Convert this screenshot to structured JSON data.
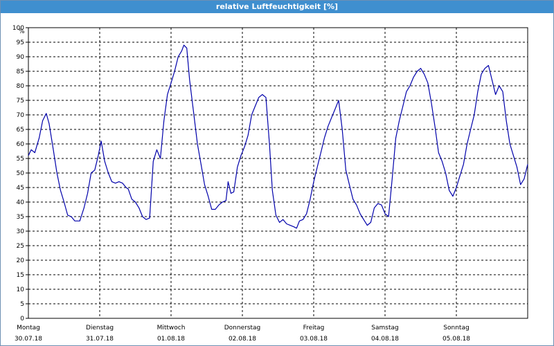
{
  "window": {
    "title": "relative Luftfeuchtigkeit [%]"
  },
  "colors": {
    "title_bg": "#3f8fcf",
    "title_fg": "#ffffff",
    "series": "#0000aa",
    "grid": "#000000"
  },
  "chart_data": {
    "type": "line",
    "title": "relative Luftfeuchtigkeit [%]",
    "ylabel": "%",
    "xlabel": "",
    "ylim": [
      0,
      100
    ],
    "y_ticks": [
      0,
      5,
      10,
      15,
      20,
      25,
      30,
      35,
      40,
      45,
      50,
      55,
      60,
      65,
      70,
      75,
      80,
      85,
      90,
      95,
      100
    ],
    "grid": true,
    "xlim": [
      0,
      7.0
    ],
    "x_ticks": [
      {
        "pos": 0,
        "day": "Montag",
        "date": "30.07.18"
      },
      {
        "pos": 1,
        "day": "Dienstag",
        "date": "31.07.18"
      },
      {
        "pos": 2,
        "day": "Mittwoch",
        "date": "01.08.18"
      },
      {
        "pos": 3,
        "day": "Donnerstag",
        "date": "02.08.18"
      },
      {
        "pos": 4,
        "day": "Freitag",
        "date": "03.08.18"
      },
      {
        "pos": 5,
        "day": "Samstag",
        "date": "04.08.18"
      },
      {
        "pos": 6,
        "day": "Sonntag",
        "date": "05.08.18"
      }
    ],
    "series": [
      {
        "values": [
          [
            0.0,
            56
          ],
          [
            0.04,
            58
          ],
          [
            0.09,
            57
          ],
          [
            0.15,
            62
          ],
          [
            0.2,
            68
          ],
          [
            0.25,
            70.5
          ],
          [
            0.29,
            67
          ],
          [
            0.35,
            58
          ],
          [
            0.4,
            50
          ],
          [
            0.45,
            44
          ],
          [
            0.5,
            40
          ],
          [
            0.55,
            35.5
          ],
          [
            0.6,
            35
          ],
          [
            0.65,
            33.5
          ],
          [
            0.72,
            33.5
          ],
          [
            0.78,
            38
          ],
          [
            0.83,
            43
          ],
          [
            0.88,
            50
          ],
          [
            0.93,
            51
          ],
          [
            0.98,
            56
          ],
          [
            1.02,
            61
          ],
          [
            1.07,
            54
          ],
          [
            1.12,
            50
          ],
          [
            1.17,
            47
          ],
          [
            1.22,
            46.5
          ],
          [
            1.27,
            47
          ],
          [
            1.32,
            46.5
          ],
          [
            1.37,
            45
          ],
          [
            1.4,
            44.5
          ],
          [
            1.45,
            41
          ],
          [
            1.5,
            40
          ],
          [
            1.55,
            38
          ],
          [
            1.6,
            35
          ],
          [
            1.65,
            34
          ],
          [
            1.7,
            34.5
          ],
          [
            1.75,
            54
          ],
          [
            1.8,
            58
          ],
          [
            1.85,
            55
          ],
          [
            1.9,
            68
          ],
          [
            1.95,
            77
          ],
          [
            2.0,
            81
          ],
          [
            2.05,
            85
          ],
          [
            2.1,
            90
          ],
          [
            2.15,
            92
          ],
          [
            2.18,
            94
          ],
          [
            2.22,
            93
          ],
          [
            2.26,
            82
          ],
          [
            2.32,
            70
          ],
          [
            2.37,
            60
          ],
          [
            2.42,
            53
          ],
          [
            2.47,
            46
          ],
          [
            2.52,
            42
          ],
          [
            2.57,
            37.5
          ],
          [
            2.62,
            37.5
          ],
          [
            2.67,
            39
          ],
          [
            2.72,
            40
          ],
          [
            2.77,
            40.5
          ],
          [
            2.8,
            47
          ],
          [
            2.84,
            43
          ],
          [
            2.88,
            43.5
          ],
          [
            2.93,
            52
          ],
          [
            2.98,
            56
          ],
          [
            3.03,
            59
          ],
          [
            3.08,
            63
          ],
          [
            3.13,
            70
          ],
          [
            3.18,
            73
          ],
          [
            3.23,
            76
          ],
          [
            3.28,
            77
          ],
          [
            3.33,
            76
          ],
          [
            3.38,
            60
          ],
          [
            3.42,
            44
          ],
          [
            3.47,
            35.5
          ],
          [
            3.52,
            33
          ],
          [
            3.57,
            34
          ],
          [
            3.62,
            32.5
          ],
          [
            3.67,
            32
          ],
          [
            3.72,
            31.5
          ],
          [
            3.76,
            31
          ],
          [
            3.8,
            33.5
          ],
          [
            3.85,
            34
          ],
          [
            3.9,
            36
          ],
          [
            3.95,
            41
          ],
          [
            4.0,
            47
          ],
          [
            4.05,
            52
          ],
          [
            4.1,
            57
          ],
          [
            4.15,
            62
          ],
          [
            4.2,
            66
          ],
          [
            4.25,
            69
          ],
          [
            4.3,
            72
          ],
          [
            4.35,
            75
          ],
          [
            4.4,
            65
          ],
          [
            4.45,
            51
          ],
          [
            4.5,
            46
          ],
          [
            4.55,
            41
          ],
          [
            4.6,
            39
          ],
          [
            4.65,
            36
          ],
          [
            4.7,
            34
          ],
          [
            4.75,
            32
          ],
          [
            4.8,
            33
          ],
          [
            4.85,
            38
          ],
          [
            4.9,
            39.5
          ],
          [
            4.95,
            39
          ],
          [
            5.0,
            36
          ],
          [
            5.05,
            35
          ],
          [
            5.1,
            48
          ],
          [
            5.15,
            62
          ],
          [
            5.2,
            68
          ],
          [
            5.25,
            73
          ],
          [
            5.3,
            78
          ],
          [
            5.35,
            80
          ],
          [
            5.4,
            83
          ],
          [
            5.45,
            85
          ],
          [
            5.5,
            86
          ],
          [
            5.55,
            84
          ],
          [
            5.6,
            81
          ],
          [
            5.65,
            74
          ],
          [
            5.7,
            66
          ],
          [
            5.75,
            57
          ],
          [
            5.8,
            54
          ],
          [
            5.85,
            50
          ],
          [
            5.9,
            44
          ],
          [
            5.95,
            42
          ],
          [
            6.0,
            45
          ],
          [
            6.05,
            49
          ],
          [
            6.1,
            53
          ],
          [
            6.15,
            60
          ],
          [
            6.2,
            65
          ],
          [
            6.25,
            70
          ],
          [
            6.3,
            78
          ],
          [
            6.35,
            84
          ],
          [
            6.4,
            86
          ],
          [
            6.45,
            87
          ],
          [
            6.5,
            82
          ],
          [
            6.55,
            77
          ],
          [
            6.6,
            80
          ],
          [
            6.65,
            78
          ],
          [
            6.7,
            68
          ],
          [
            6.75,
            60
          ],
          [
            6.8,
            56
          ],
          [
            6.85,
            52
          ],
          [
            6.9,
            46
          ],
          [
            6.95,
            48
          ],
          [
            7.0,
            53
          ]
        ]
      }
    ]
  }
}
